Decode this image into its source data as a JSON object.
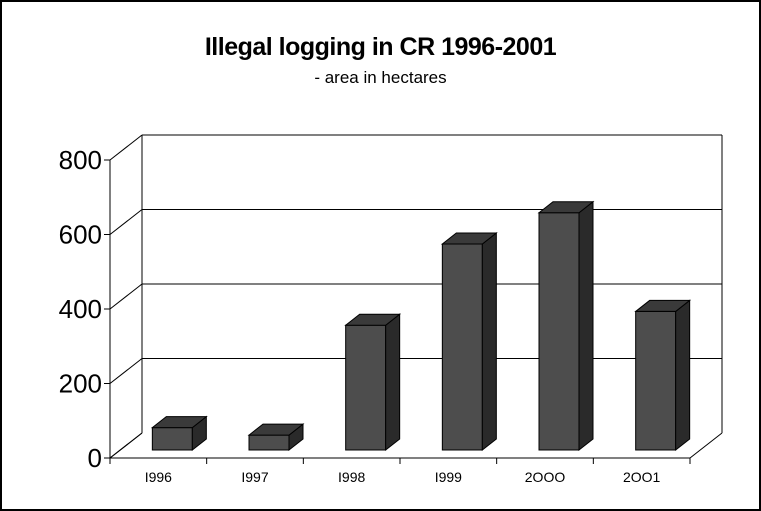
{
  "chart_data": {
    "type": "bar",
    "title": "Illegal logging in CR 1996-2001",
    "subtitle": "- area in hectares",
    "categories": [
      "I996",
      "I997",
      "I998",
      "I999",
      "2OOO",
      "2OO1"
    ],
    "values": [
      60,
      40,
      335,
      553,
      637,
      372
    ],
    "yticks": [
      "0",
      "200",
      "400",
      "600",
      "800"
    ],
    "ylim": [
      0,
      800
    ],
    "grid": true,
    "style": "3d",
    "colors": {
      "bar_front": "#4d4d4d",
      "bar_side": "#2a2a2a",
      "bar_top": "#3a3a3a",
      "grid": "#000000"
    }
  }
}
